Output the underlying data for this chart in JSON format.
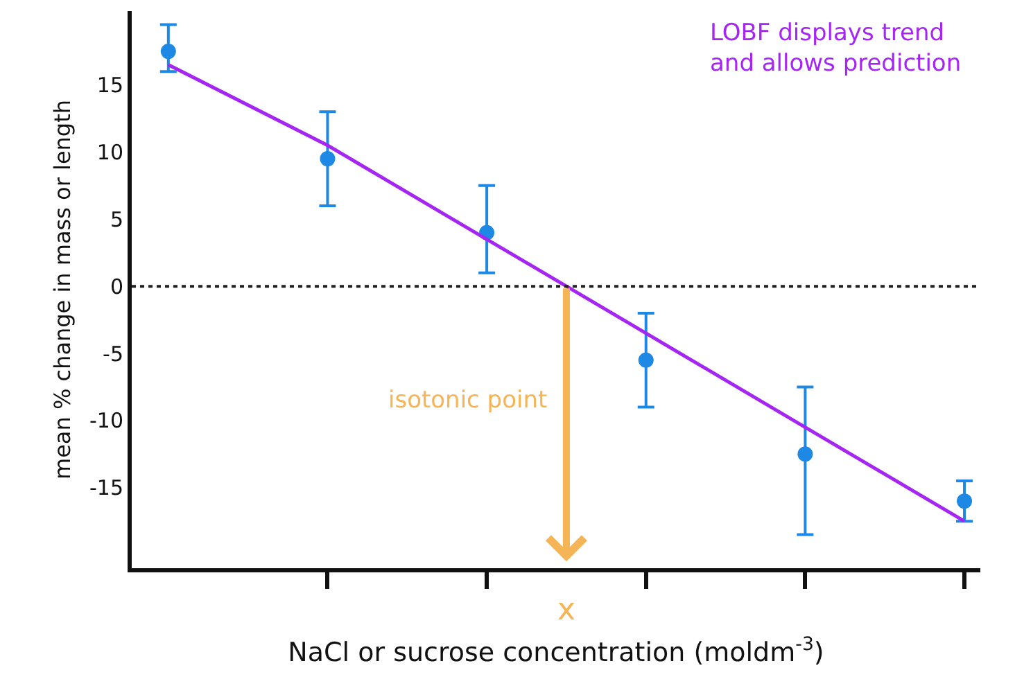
{
  "chart_data": {
    "type": "scatter",
    "xlabel": "NaCl or sucrose concentration (moldm$^{-3}$)",
    "ylabel": "mean % change in mass or length",
    "categories": [
      null,
      null,
      null,
      null,
      null,
      null
    ],
    "series": [
      {
        "marker": "circle",
        "color": "#1e88e5",
        "values": [
          17.5,
          9.5,
          4,
          -5.5,
          -12.5,
          -16
        ],
        "errors": [
          [
            16,
            19.5
          ],
          [
            6,
            13
          ],
          [
            1,
            7.5
          ],
          [
            -9,
            -2
          ],
          [
            -18.5,
            -7.5
          ],
          [
            -17.5,
            -14.5
          ]
        ]
      },
      {
        "type": "line",
        "marker": "none",
        "color": "#a526f2",
        "values": [
          16.5,
          10.5,
          3.5,
          -3.5,
          -10.5,
          -17.5
        ]
      }
    ],
    "ylim": [
      -21,
      20.5
    ],
    "yticks": [
      -15,
      -10,
      -5,
      0,
      5,
      10,
      15
    ],
    "ref_lines": [
      {
        "axis": "y",
        "value": 0,
        "label": null,
        "color": "#222222",
        "line_style": "dotted"
      }
    ],
    "annotations": [
      "LOBF displays trend\nand allows prediction",
      "isotonic point",
      "x"
    ],
    "tick_labels": "y"
  }
}
